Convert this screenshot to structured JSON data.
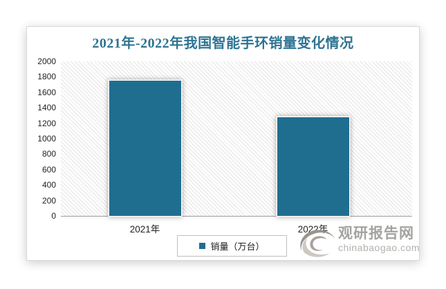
{
  "chart_data": {
    "type": "bar",
    "title": "2021年-2022年我国智能手环销量变化情况",
    "categories": [
      "2021年",
      "2022年"
    ],
    "series": [
      {
        "name": "销量（万台）",
        "values": [
          1750,
          1280
        ]
      }
    ],
    "xlabel": "",
    "ylabel": "",
    "ylim": [
      0,
      2000
    ],
    "ytick_step": 200,
    "grid": false,
    "legend_position": "bottom-center",
    "plot_background": "diagonal-hatch",
    "bar_color": "#1F6E90",
    "title_color": "#2E7493",
    "axis_line_color": "#9b9b9b"
  },
  "watermark": {
    "site_name": "观研报告网",
    "domain": "chinabaogao.com",
    "logo": "swirl-eye-logo"
  }
}
